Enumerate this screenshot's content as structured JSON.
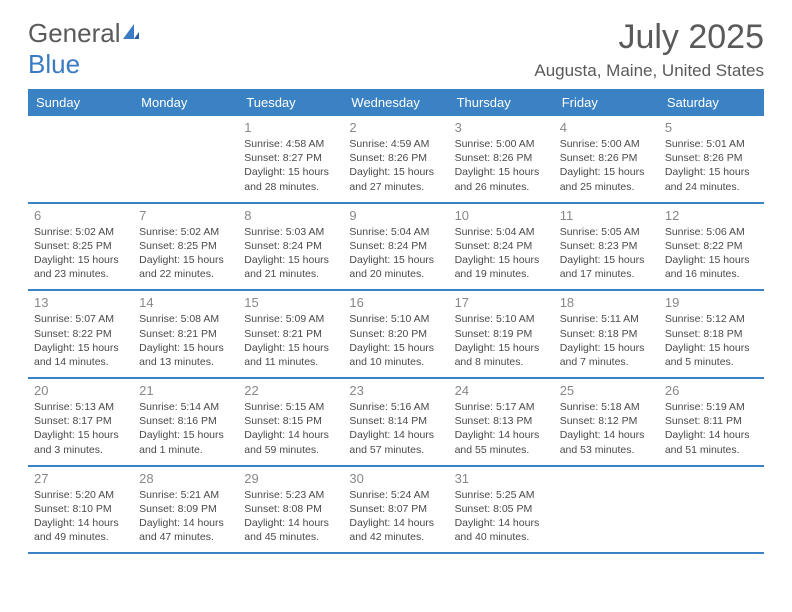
{
  "brand": {
    "part1": "General",
    "part2": "Blue"
  },
  "title": "July 2025",
  "location": "Augusta, Maine, United States",
  "colors": {
    "header_bg": "#3b82c4",
    "border": "#3b82c4",
    "text": "#4a4a4a",
    "muted": "#888"
  },
  "dow": [
    "Sunday",
    "Monday",
    "Tuesday",
    "Wednesday",
    "Thursday",
    "Friday",
    "Saturday"
  ],
  "weeks": [
    [
      null,
      null,
      {
        "n": "1",
        "sr": "4:58 AM",
        "ss": "8:27 PM",
        "dl": "15 hours and 28 minutes."
      },
      {
        "n": "2",
        "sr": "4:59 AM",
        "ss": "8:26 PM",
        "dl": "15 hours and 27 minutes."
      },
      {
        "n": "3",
        "sr": "5:00 AM",
        "ss": "8:26 PM",
        "dl": "15 hours and 26 minutes."
      },
      {
        "n": "4",
        "sr": "5:00 AM",
        "ss": "8:26 PM",
        "dl": "15 hours and 25 minutes."
      },
      {
        "n": "5",
        "sr": "5:01 AM",
        "ss": "8:26 PM",
        "dl": "15 hours and 24 minutes."
      }
    ],
    [
      {
        "n": "6",
        "sr": "5:02 AM",
        "ss": "8:25 PM",
        "dl": "15 hours and 23 minutes."
      },
      {
        "n": "7",
        "sr": "5:02 AM",
        "ss": "8:25 PM",
        "dl": "15 hours and 22 minutes."
      },
      {
        "n": "8",
        "sr": "5:03 AM",
        "ss": "8:24 PM",
        "dl": "15 hours and 21 minutes."
      },
      {
        "n": "9",
        "sr": "5:04 AM",
        "ss": "8:24 PM",
        "dl": "15 hours and 20 minutes."
      },
      {
        "n": "10",
        "sr": "5:04 AM",
        "ss": "8:24 PM",
        "dl": "15 hours and 19 minutes."
      },
      {
        "n": "11",
        "sr": "5:05 AM",
        "ss": "8:23 PM",
        "dl": "15 hours and 17 minutes."
      },
      {
        "n": "12",
        "sr": "5:06 AM",
        "ss": "8:22 PM",
        "dl": "15 hours and 16 minutes."
      }
    ],
    [
      {
        "n": "13",
        "sr": "5:07 AM",
        "ss": "8:22 PM",
        "dl": "15 hours and 14 minutes."
      },
      {
        "n": "14",
        "sr": "5:08 AM",
        "ss": "8:21 PM",
        "dl": "15 hours and 13 minutes."
      },
      {
        "n": "15",
        "sr": "5:09 AM",
        "ss": "8:21 PM",
        "dl": "15 hours and 11 minutes."
      },
      {
        "n": "16",
        "sr": "5:10 AM",
        "ss": "8:20 PM",
        "dl": "15 hours and 10 minutes."
      },
      {
        "n": "17",
        "sr": "5:10 AM",
        "ss": "8:19 PM",
        "dl": "15 hours and 8 minutes."
      },
      {
        "n": "18",
        "sr": "5:11 AM",
        "ss": "8:18 PM",
        "dl": "15 hours and 7 minutes."
      },
      {
        "n": "19",
        "sr": "5:12 AM",
        "ss": "8:18 PM",
        "dl": "15 hours and 5 minutes."
      }
    ],
    [
      {
        "n": "20",
        "sr": "5:13 AM",
        "ss": "8:17 PM",
        "dl": "15 hours and 3 minutes."
      },
      {
        "n": "21",
        "sr": "5:14 AM",
        "ss": "8:16 PM",
        "dl": "15 hours and 1 minute."
      },
      {
        "n": "22",
        "sr": "5:15 AM",
        "ss": "8:15 PM",
        "dl": "14 hours and 59 minutes."
      },
      {
        "n": "23",
        "sr": "5:16 AM",
        "ss": "8:14 PM",
        "dl": "14 hours and 57 minutes."
      },
      {
        "n": "24",
        "sr": "5:17 AM",
        "ss": "8:13 PM",
        "dl": "14 hours and 55 minutes."
      },
      {
        "n": "25",
        "sr": "5:18 AM",
        "ss": "8:12 PM",
        "dl": "14 hours and 53 minutes."
      },
      {
        "n": "26",
        "sr": "5:19 AM",
        "ss": "8:11 PM",
        "dl": "14 hours and 51 minutes."
      }
    ],
    [
      {
        "n": "27",
        "sr": "5:20 AM",
        "ss": "8:10 PM",
        "dl": "14 hours and 49 minutes."
      },
      {
        "n": "28",
        "sr": "5:21 AM",
        "ss": "8:09 PM",
        "dl": "14 hours and 47 minutes."
      },
      {
        "n": "29",
        "sr": "5:23 AM",
        "ss": "8:08 PM",
        "dl": "14 hours and 45 minutes."
      },
      {
        "n": "30",
        "sr": "5:24 AM",
        "ss": "8:07 PM",
        "dl": "14 hours and 42 minutes."
      },
      {
        "n": "31",
        "sr": "5:25 AM",
        "ss": "8:05 PM",
        "dl": "14 hours and 40 minutes."
      },
      null,
      null
    ]
  ],
  "labels": {
    "sunrise": "Sunrise:",
    "sunset": "Sunset:",
    "daylight": "Daylight:"
  }
}
